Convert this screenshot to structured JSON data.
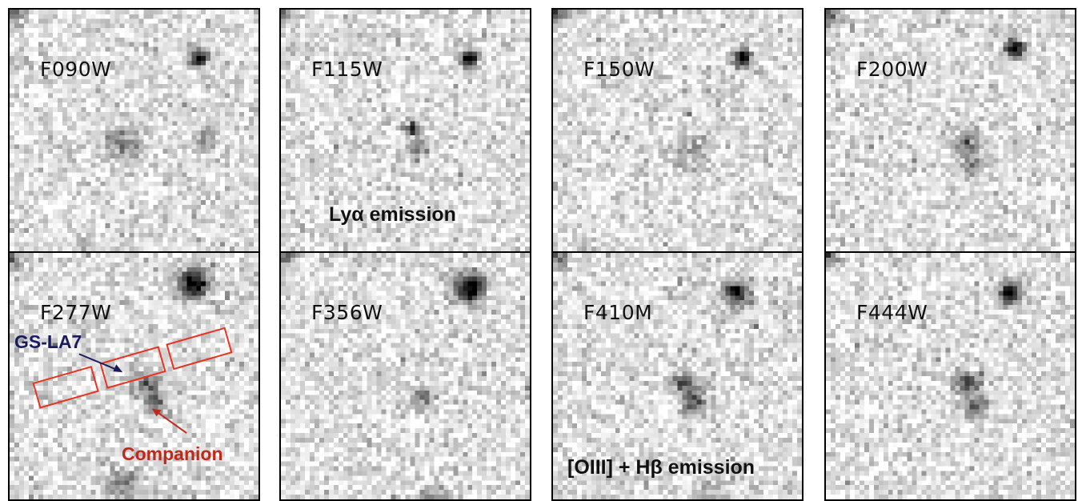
{
  "panels": [
    {
      "filter": "F090W"
    },
    {
      "filter": "F115W",
      "note": "Lyα emission"
    },
    {
      "filter": "F150W"
    },
    {
      "filter": "F200W"
    },
    {
      "filter": "F277W"
    },
    {
      "filter": "F356W"
    },
    {
      "filter": "F410M",
      "note": "[OIII] + Hβ emission"
    },
    {
      "filter": "F444W"
    }
  ],
  "annotations": {
    "target_label": "GS-LA7",
    "companion_label": "Companion",
    "target_color": "#1a1a5e",
    "companion_color": "#c0281a",
    "box_color": "#e8321e"
  }
}
